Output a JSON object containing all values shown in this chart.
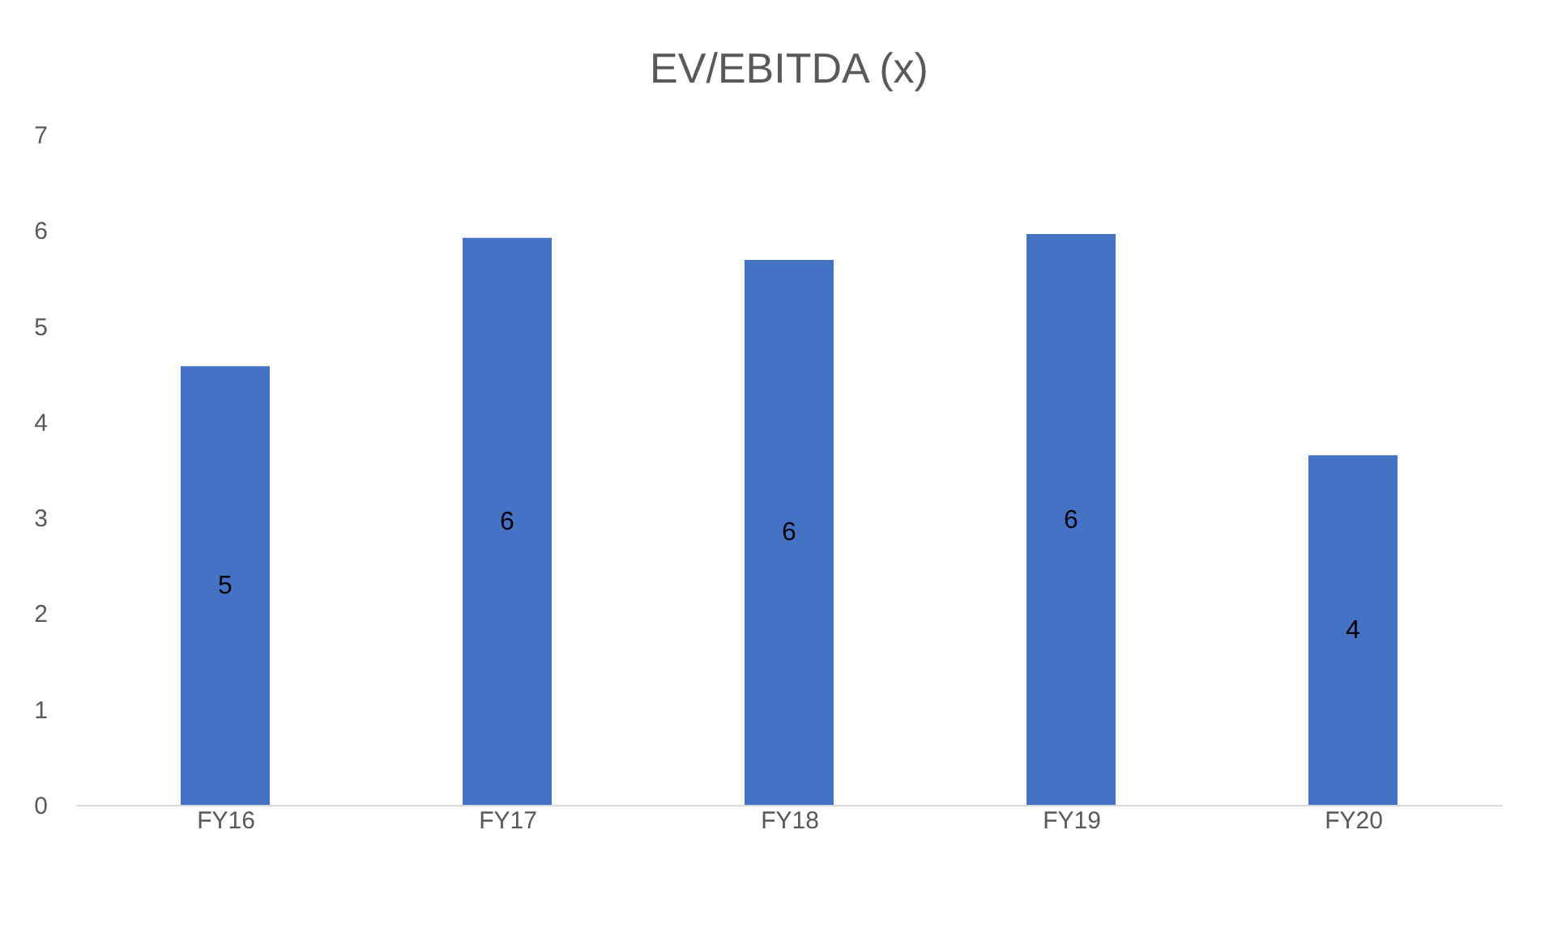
{
  "chart_data": {
    "type": "bar",
    "title": "EV/EBITDA (x)",
    "categories": [
      "FY16",
      "FY17",
      "FY18",
      "FY19",
      "FY20"
    ],
    "values": [
      4.58,
      5.92,
      5.69,
      5.96,
      3.65
    ],
    "value_labels": [
      "5",
      "6",
      "6",
      "6",
      "4"
    ],
    "color": "#4472c4",
    "ylim": [
      0,
      7
    ],
    "yticks": [
      0,
      1,
      2,
      3,
      4,
      5,
      6,
      7
    ],
    "grid": false
  }
}
